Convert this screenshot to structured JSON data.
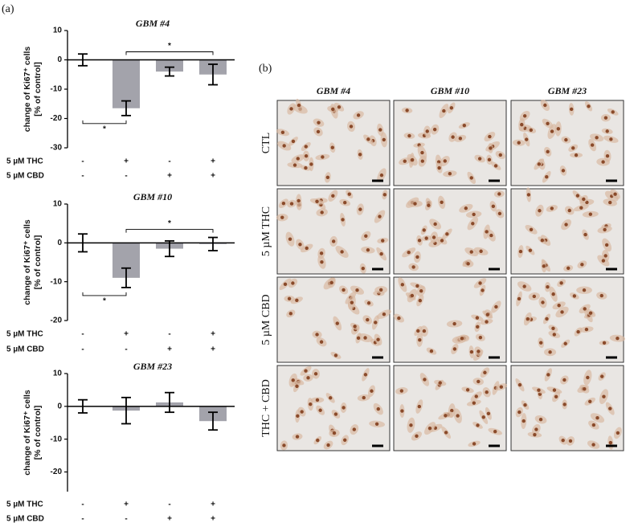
{
  "panel_labels": [
    "(a)",
    "(b)"
  ],
  "chart_data": [
    {
      "type": "bar",
      "title": "GBM #4",
      "ylabel": [
        "change of Ki67⁺ cells",
        "[% of control]"
      ],
      "categories": [
        null,
        null,
        null,
        null
      ],
      "values": [
        0,
        -16.5,
        -4,
        -5
      ],
      "errors": [
        2,
        2.5,
        1.5,
        3.5
      ],
      "color": "#a3a3ab",
      "ylim": [
        -30,
        10
      ],
      "yticks": [
        -30,
        -20,
        -10,
        0,
        10
      ],
      "significance": [
        {
          "label": "*",
          "between": [
            0,
            1
          ],
          "side": "below"
        },
        {
          "label": "*",
          "between": [
            1,
            3
          ],
          "side": "above"
        }
      ],
      "treatments": [
        {
          "name": "5 µM THC",
          "signs": [
            "-",
            "+",
            "-",
            "+"
          ]
        },
        {
          "name": "5 µM CBD",
          "signs": [
            "-",
            "-",
            "+",
            "+"
          ]
        }
      ]
    },
    {
      "type": "bar",
      "title": "GBM #10",
      "ylabel": [
        "change of Ki67⁺ cells",
        "[% of control]"
      ],
      "categories": [
        null,
        null,
        null,
        null
      ],
      "values": [
        0,
        -9,
        -1.5,
        -0.3
      ],
      "errors": [
        2.3,
        2.5,
        2,
        1.7
      ],
      "color": "#a3a3ab",
      "ylim": [
        -20,
        10
      ],
      "yticks": [
        -20,
        -10,
        0,
        10
      ],
      "significance": [
        {
          "label": "*",
          "between": [
            0,
            1
          ],
          "side": "below"
        },
        {
          "label": "*",
          "between": [
            1,
            3
          ],
          "side": "above"
        }
      ],
      "treatments": [
        {
          "name": "5 µM THC",
          "signs": [
            "-",
            "+",
            "-",
            "+"
          ]
        },
        {
          "name": "5 µM CBD",
          "signs": [
            "-",
            "-",
            "+",
            "+"
          ]
        }
      ]
    },
    {
      "type": "bar",
      "title": "GBM #23",
      "ylabel": [
        "change of Ki67⁺ cells",
        "[% of control]"
      ],
      "categories": [
        null,
        null,
        null,
        null
      ],
      "values": [
        0,
        -1.3,
        1.2,
        -4.5
      ],
      "errors": [
        2,
        4,
        3,
        2.7
      ],
      "color": "#a3a3ab",
      "ylim": [
        -26,
        10
      ],
      "yticks": [
        -20,
        -10,
        0,
        10
      ],
      "significance": [],
      "treatments": [
        {
          "name": "5 µM THC",
          "signs": [
            "-",
            "+",
            "-",
            "+"
          ]
        },
        {
          "name": "5 µM CBD",
          "signs": [
            "-",
            "-",
            "+",
            "+"
          ]
        }
      ]
    }
  ],
  "panel_b": {
    "columns": [
      "GBM #4",
      "GBM #10",
      "GBM #23"
    ],
    "rows": [
      "CTL",
      "5 µM THC",
      "5 µM CBD",
      "THC + CBD"
    ]
  }
}
